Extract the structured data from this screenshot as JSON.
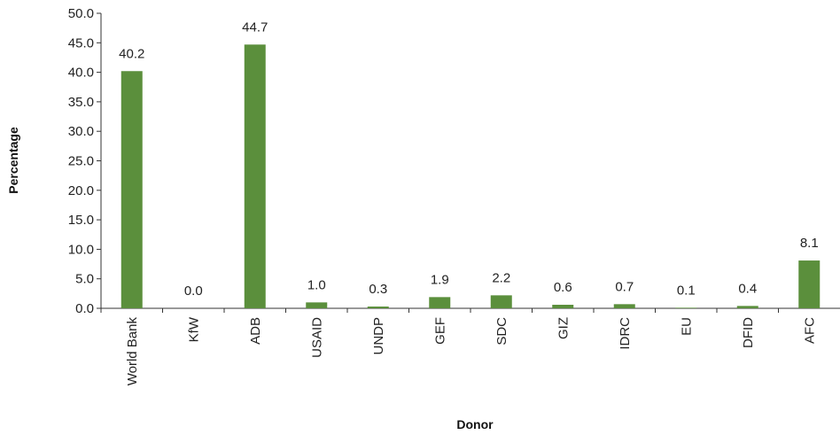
{
  "chart_data": {
    "type": "bar",
    "title": "",
    "xlabel": "Donor",
    "ylabel": "Percentage",
    "ylim": [
      0,
      50
    ],
    "yticks": [
      "0.0",
      "5.0",
      "10.0",
      "15.0",
      "20.0",
      "25.0",
      "30.0",
      "35.0",
      "40.0",
      "45.0",
      "50.0"
    ],
    "categories": [
      "World Bank",
      "KfW",
      "ADB",
      "USAID",
      "UNDP",
      "GEF",
      "SDC",
      "GIZ",
      "IDRC",
      "EU",
      "DFID",
      "AFC"
    ],
    "values": [
      40.2,
      0.0,
      44.7,
      1.0,
      0.3,
      1.9,
      2.2,
      0.6,
      0.7,
      0.1,
      0.4,
      8.1
    ],
    "data_labels": [
      "40.2",
      "0.0",
      "44.7",
      "1.0",
      "0.3",
      "1.9",
      "2.2",
      "0.6",
      "0.7",
      "0.1",
      "0.4",
      "8.1"
    ],
    "bar_color": "#5b8f3c",
    "axis_color": "#333333",
    "grid": false,
    "legend": "none"
  }
}
